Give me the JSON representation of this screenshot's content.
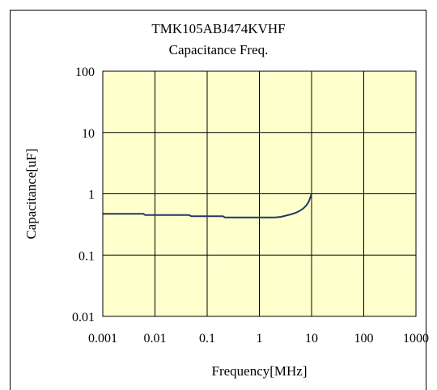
{
  "chart_data": {
    "type": "line",
    "title": "TMK105ABJ474KVHF",
    "subtitle": "Capacitance Freq.",
    "xlabel": "Frequency[MHz]",
    "ylabel": "Capacitance[uF]",
    "xscale": "log",
    "yscale": "log",
    "xlim": [
      0.001,
      1000
    ],
    "ylim": [
      0.01,
      100
    ],
    "xticks": [
      "0.001",
      "0.01",
      "0.1",
      "1",
      "10",
      "100",
      "1000"
    ],
    "yticks": [
      "0.01",
      "0.1",
      "1",
      "10",
      "100"
    ],
    "grid": true,
    "plot_background": "#FFFFCC",
    "line_color": "#1F3A66",
    "series": [
      {
        "x": [
          0.001,
          0.006,
          0.0065,
          0.045,
          0.05,
          0.2,
          0.22,
          1.0,
          2.0,
          2.6,
          3.2,
          4.0,
          5.0,
          6.0,
          7.0,
          8.0,
          8.8,
          9.4,
          10.0
        ],
        "y": [
          0.47,
          0.47,
          0.45,
          0.45,
          0.43,
          0.43,
          0.41,
          0.41,
          0.41,
          0.42,
          0.44,
          0.46,
          0.49,
          0.53,
          0.58,
          0.65,
          0.74,
          0.86,
          1.0
        ]
      }
    ]
  }
}
